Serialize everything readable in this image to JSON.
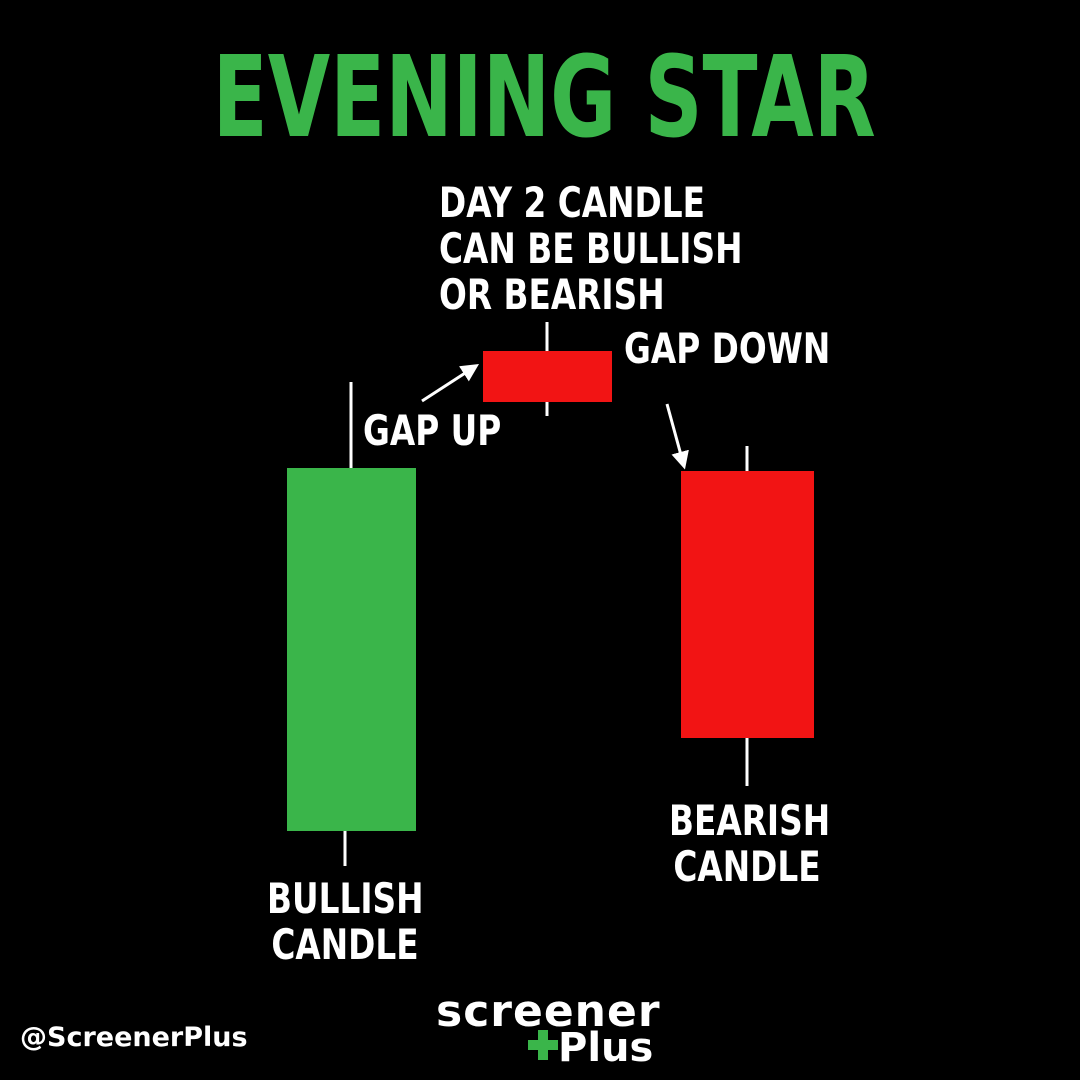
{
  "title": "EVENING STAR",
  "colors": {
    "background": "#000000",
    "bullish": "#3ab54a",
    "bearish": "#f21414",
    "text": "#ffffff",
    "title": "#3ab54a",
    "logo_plus": "#3ab54a"
  },
  "labels": {
    "day2_line1": "DAY 2 CANDLE",
    "day2_line2": "CAN BE BULLISH",
    "day2_line3": "OR BEARISH",
    "gap_up": "GAP UP",
    "gap_down": "GAP DOWN",
    "bullish_line1": "BULLISH",
    "bullish_line2": "CANDLE",
    "bearish_line1": "BEARISH",
    "bearish_line2": "CANDLE"
  },
  "candles": [
    {
      "name": "bullish",
      "color": "bullish"
    },
    {
      "name": "star",
      "color": "bearish"
    },
    {
      "name": "bearish",
      "color": "bearish"
    }
  ],
  "footer": {
    "handle": "@ScreenerPlus",
    "logo_top": "screener",
    "logo_bottom": "Plus"
  }
}
